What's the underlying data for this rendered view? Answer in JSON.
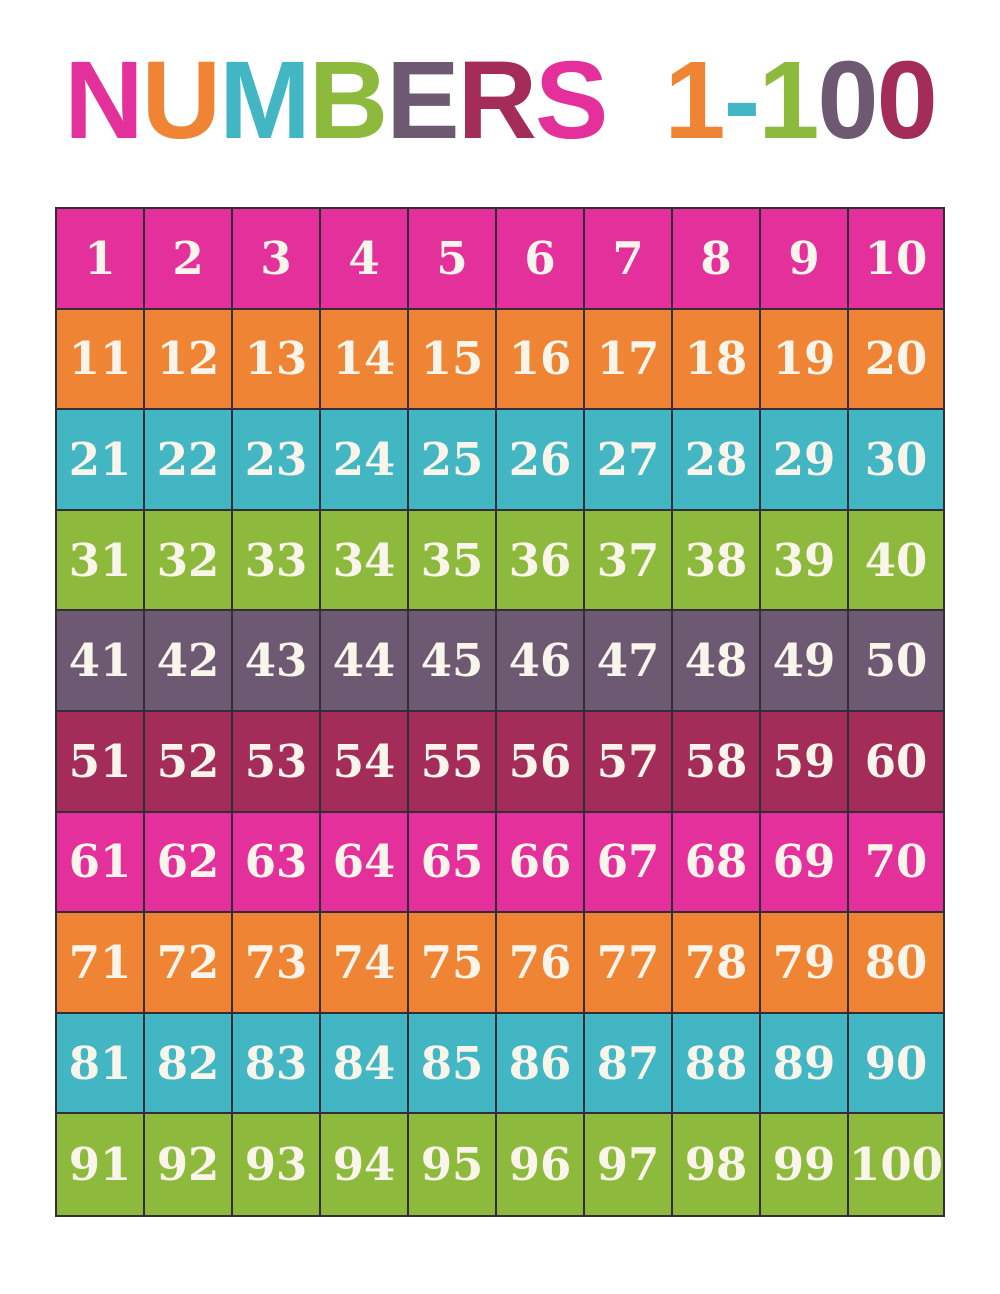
{
  "page": {
    "background": "#ffffff"
  },
  "palette": {
    "pink": "#e4309a",
    "orange": "#ef8434",
    "teal": "#43b6c4",
    "green": "#8db93d",
    "purple": "#6d5a72",
    "maroon": "#a42c58"
  },
  "title": {
    "text": "NUMBERS 1-100",
    "letters": [
      {
        "char": "N",
        "color": "#e4309a"
      },
      {
        "char": "U",
        "color": "#ef8434"
      },
      {
        "char": "M",
        "color": "#43b6c4"
      },
      {
        "char": "B",
        "color": "#8db93d"
      },
      {
        "char": "E",
        "color": "#6d5a72"
      },
      {
        "char": "R",
        "color": "#a42c58"
      },
      {
        "char": "S",
        "color": "#e4309a"
      },
      {
        "char": " ",
        "color": ""
      },
      {
        "char": "1",
        "color": "#ef8434"
      },
      {
        "char": "-",
        "color": "#43b6c4"
      },
      {
        "char": "1",
        "color": "#8db93d"
      },
      {
        "char": "0",
        "color": "#6d5a72"
      },
      {
        "char": "0",
        "color": "#a42c58"
      }
    ]
  },
  "grid": {
    "line_color": "#322d38",
    "number_color": "#faf5eb",
    "rows": [
      {
        "color_name": "pink",
        "color": "#e4309a",
        "numbers": [
          1,
          2,
          3,
          4,
          5,
          6,
          7,
          8,
          9,
          10
        ]
      },
      {
        "color_name": "orange",
        "color": "#ef8434",
        "numbers": [
          11,
          12,
          13,
          14,
          15,
          16,
          17,
          18,
          19,
          20
        ]
      },
      {
        "color_name": "teal",
        "color": "#43b6c4",
        "numbers": [
          21,
          22,
          23,
          24,
          25,
          26,
          27,
          28,
          29,
          30
        ]
      },
      {
        "color_name": "green",
        "color": "#8db93d",
        "numbers": [
          31,
          32,
          33,
          34,
          35,
          36,
          37,
          38,
          39,
          40
        ]
      },
      {
        "color_name": "purple",
        "color": "#6d5a72",
        "numbers": [
          41,
          42,
          43,
          44,
          45,
          46,
          47,
          48,
          49,
          50
        ]
      },
      {
        "color_name": "maroon",
        "color": "#a42c58",
        "numbers": [
          51,
          52,
          53,
          54,
          55,
          56,
          57,
          58,
          59,
          60
        ]
      },
      {
        "color_name": "pink",
        "color": "#e4309a",
        "numbers": [
          61,
          62,
          63,
          64,
          65,
          66,
          67,
          68,
          69,
          70
        ]
      },
      {
        "color_name": "orange",
        "color": "#ef8434",
        "numbers": [
          71,
          72,
          73,
          74,
          75,
          76,
          77,
          78,
          79,
          80
        ]
      },
      {
        "color_name": "teal",
        "color": "#43b6c4",
        "numbers": [
          81,
          82,
          83,
          84,
          85,
          86,
          87,
          88,
          89,
          90
        ]
      },
      {
        "color_name": "green",
        "color": "#8db93d",
        "numbers": [
          91,
          92,
          93,
          94,
          95,
          96,
          97,
          98,
          99,
          100
        ]
      }
    ]
  }
}
